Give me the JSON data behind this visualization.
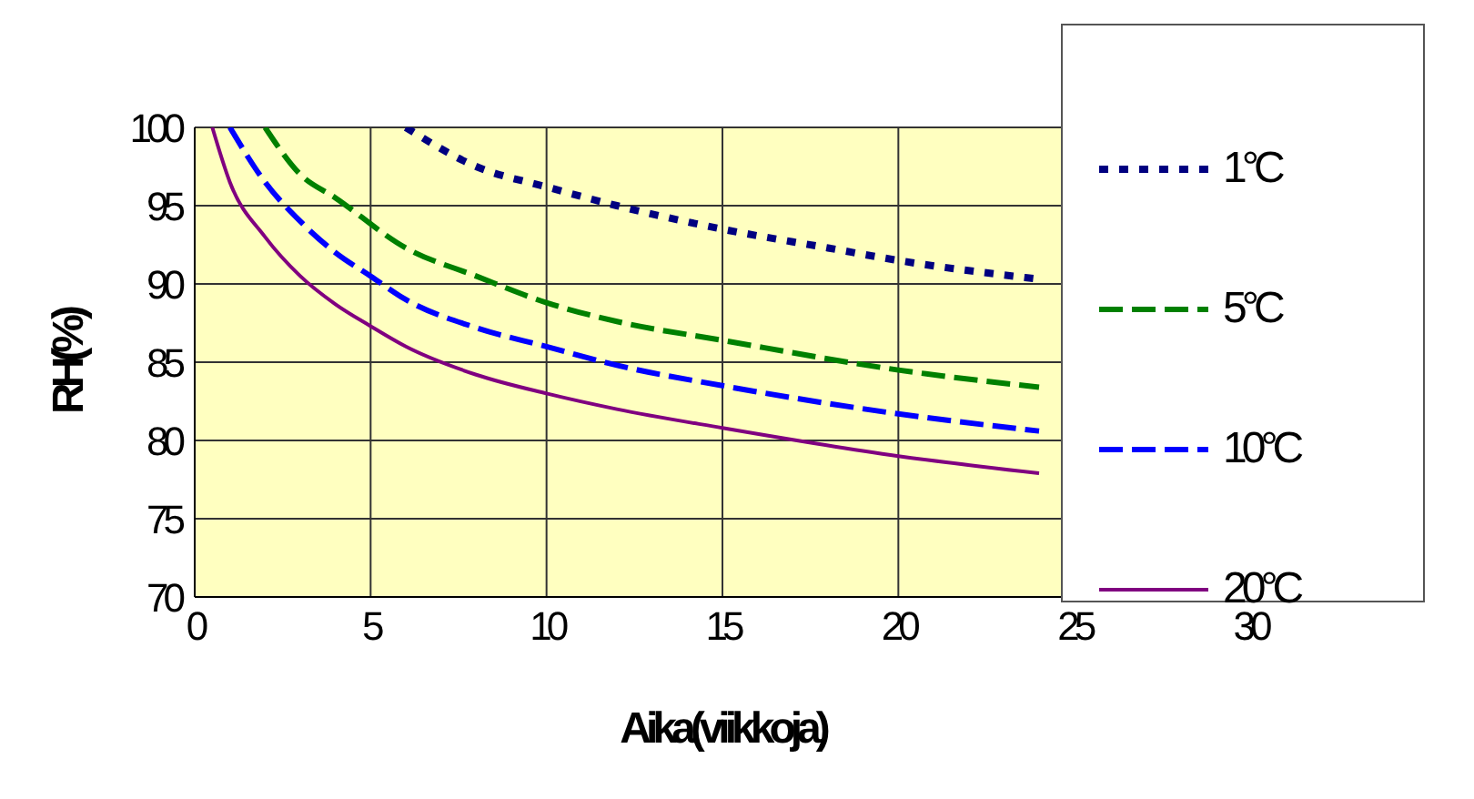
{
  "chart_data": {
    "type": "line",
    "xlabel": "Aika(viikkoja)",
    "ylabel": "RH(%)",
    "xlim": [
      0,
      30
    ],
    "xticks": [
      0,
      5,
      10,
      15,
      20,
      25,
      30
    ],
    "ylim": [
      70,
      100
    ],
    "yticks": [
      70,
      75,
      80,
      85,
      90,
      95,
      100
    ],
    "grid": true,
    "legend": "right",
    "marker": "none",
    "series": [
      {
        "name": "1°C",
        "color": "#000080",
        "line_style": "dotted",
        "x": [
          6,
          8,
          10,
          12,
          15,
          18,
          20,
          24
        ],
        "values": [
          100,
          97.5,
          96.2,
          95,
          93.5,
          92.3,
          91.5,
          90.3
        ]
      },
      {
        "name": "5°C",
        "color": "#008000",
        "line_style": "dashed",
        "x": [
          2,
          3,
          4,
          6,
          8,
          10,
          12,
          15,
          20,
          24
        ],
        "values": [
          100,
          97,
          95.5,
          92.3,
          90.5,
          88.8,
          87.6,
          86.4,
          84.5,
          83.4
        ]
      },
      {
        "name": "10°C",
        "color": "#0000ff",
        "line_style": "dashed",
        "x": [
          1,
          2,
          3,
          4,
          5,
          6,
          8,
          10,
          12,
          15,
          20,
          24
        ],
        "values": [
          100,
          96.5,
          94,
          92,
          90.5,
          89,
          87.2,
          86,
          84.8,
          83.5,
          81.7,
          80.6
        ]
      },
      {
        "name": "20°C",
        "color": "#800080",
        "line_style": "solid",
        "x": [
          0.5,
          1,
          2,
          3,
          4,
          5,
          6,
          8,
          10,
          12,
          15,
          20,
          24
        ],
        "values": [
          100,
          96.5,
          93,
          90.5,
          88.7,
          87.3,
          86,
          84.2,
          83,
          82,
          80.8,
          79,
          77.9
        ]
      }
    ]
  }
}
